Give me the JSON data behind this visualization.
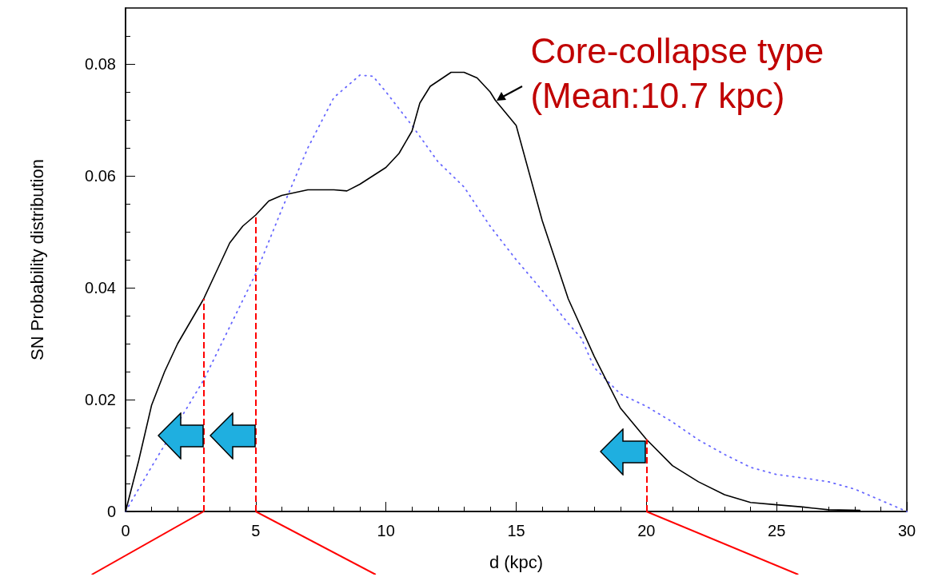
{
  "chart_data": {
    "type": "line",
    "xlabel": "d (kpc)",
    "ylabel": "SN Probability distribution",
    "xlim": [
      0,
      30
    ],
    "xticks": [
      0,
      5,
      10,
      15,
      20,
      25,
      30
    ],
    "ylim": [
      0,
      0.09
    ],
    "yticks": [
      0,
      0.02,
      0.04,
      0.06,
      0.08
    ],
    "grid": false,
    "marker": "none",
    "series": [
      {
        "color": "#000000",
        "line_style": "solid",
        "x": [
          0,
          0.5,
          1,
          1.5,
          2,
          2.5,
          3,
          3.5,
          4,
          4.5,
          5,
          5.5,
          6,
          7,
          8,
          8.5,
          9,
          10,
          10.5,
          11,
          11.3,
          11.7,
          12.5,
          13,
          13.5,
          14,
          14.2,
          15,
          16,
          17,
          18,
          19,
          20,
          21,
          22,
          23,
          24,
          25,
          26,
          27,
          28.2
        ],
        "values": [
          0,
          0.009,
          0.019,
          0.025,
          0.03,
          0.034,
          0.038,
          0.043,
          0.048,
          0.051,
          0.053,
          0.0555,
          0.0565,
          0.0575,
          0.0575,
          0.0573,
          0.0585,
          0.0615,
          0.064,
          0.068,
          0.073,
          0.076,
          0.0785,
          0.0785,
          0.0775,
          0.075,
          0.0735,
          0.069,
          0.052,
          0.038,
          0.0277,
          0.0185,
          0.0129,
          0.0082,
          0.0053,
          0.003,
          0.0016,
          0.0012,
          0.0008,
          0.0003,
          0.0002
        ]
      },
      {
        "color": "#6666ff",
        "line_style": "dotted",
        "x": [
          0,
          1,
          3,
          4,
          5,
          6,
          7,
          8,
          9,
          9.5,
          10,
          11,
          12,
          13,
          14,
          15,
          16,
          17,
          17.5,
          18,
          19,
          20,
          21,
          22,
          23,
          24,
          25,
          26,
          27,
          28,
          29,
          30
        ],
        "values": [
          0,
          0.008,
          0.0235,
          0.033,
          0.0425,
          0.054,
          0.065,
          0.074,
          0.078,
          0.0778,
          0.075,
          0.069,
          0.0625,
          0.058,
          0.051,
          0.045,
          0.0395,
          0.0336,
          0.031,
          0.0257,
          0.021,
          0.0188,
          0.016,
          0.0128,
          0.0102,
          0.0079,
          0.0066,
          0.006,
          0.0053,
          0.004,
          0.002,
          0
        ]
      }
    ],
    "ref_lines": [
      {
        "axis": "x",
        "value": 3,
        "color": "#ff0000",
        "line_style": "dashed"
      },
      {
        "axis": "x",
        "value": 5,
        "color": "#ff0000",
        "line_style": "dashed"
      },
      {
        "axis": "x",
        "value": 20,
        "color": "#ff0000",
        "line_style": "dashed"
      }
    ],
    "annotations": [
      {
        "text": "Core-collapse type\n(Mean:10.7 kpc)",
        "x": 14.2,
        "y": 0.0735
      }
    ]
  }
}
